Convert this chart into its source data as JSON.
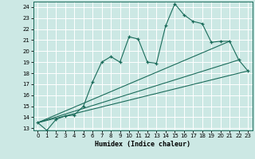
{
  "xlabel": "Humidex (Indice chaleur)",
  "bg_color": "#cce8e4",
  "grid_color": "#ffffff",
  "line_color": "#1a6b5a",
  "xlim": [
    -0.5,
    23.5
  ],
  "ylim": [
    12.8,
    24.5
  ],
  "yticks": [
    13,
    14,
    15,
    16,
    17,
    18,
    19,
    20,
    21,
    22,
    23,
    24
  ],
  "xticks": [
    0,
    1,
    2,
    3,
    4,
    5,
    6,
    7,
    8,
    9,
    10,
    11,
    12,
    13,
    14,
    15,
    16,
    17,
    18,
    19,
    20,
    21,
    22,
    23
  ],
  "main_line": {
    "x": [
      0,
      1,
      2,
      3,
      4,
      5,
      6,
      7,
      8,
      9,
      10,
      11,
      12,
      13,
      14,
      15,
      16,
      17,
      18,
      19,
      20,
      21,
      22,
      23
    ],
    "y": [
      13.5,
      12.8,
      13.8,
      14.1,
      14.2,
      15.0,
      17.2,
      19.0,
      19.5,
      19.0,
      21.3,
      21.1,
      19.0,
      18.9,
      22.3,
      24.3,
      23.3,
      22.7,
      22.5,
      20.8,
      20.9,
      20.9,
      19.2,
      18.2
    ]
  },
  "fan_lines": [
    {
      "x": [
        0,
        23
      ],
      "y": [
        13.5,
        18.2
      ]
    },
    {
      "x": [
        0,
        22
      ],
      "y": [
        13.5,
        19.2
      ]
    },
    {
      "x": [
        0,
        21
      ],
      "y": [
        13.5,
        20.9
      ]
    }
  ]
}
